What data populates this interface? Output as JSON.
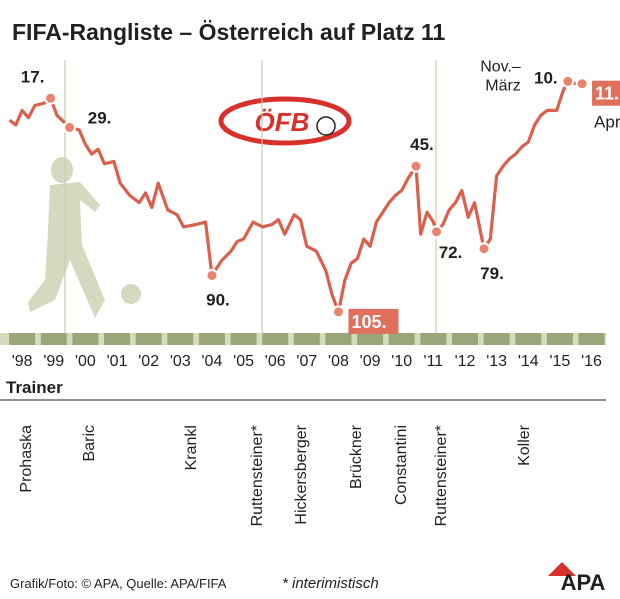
{
  "chart_data": {
    "type": "line",
    "title": "FIFA-Rangliste – Österreich auf Platz 11",
    "color": "#d9614c",
    "xlim": [
      1997.3,
      2016.9
    ],
    "ylim": [
      110,
      0
    ],
    "xticks": [
      {
        "value": 1998,
        "label": "'98"
      },
      {
        "value": 1999,
        "label": "'99"
      },
      {
        "value": 2000,
        "label": "'00"
      },
      {
        "value": 2001,
        "label": "'01"
      },
      {
        "value": 2002,
        "label": "'02"
      },
      {
        "value": 2003,
        "label": "'03"
      },
      {
        "value": 2004,
        "label": "'04"
      },
      {
        "value": 2005,
        "label": "'05"
      },
      {
        "value": 2006,
        "label": "'06"
      },
      {
        "value": 2007,
        "label": "'07"
      },
      {
        "value": 2008,
        "label": "'08"
      },
      {
        "value": 2009,
        "label": "'09"
      },
      {
        "value": 2010,
        "label": "'10"
      },
      {
        "value": 2011,
        "label": "'11"
      },
      {
        "value": 2012,
        "label": "'12"
      },
      {
        "value": 2013,
        "label": "'13"
      },
      {
        "value": 2014,
        "label": "'14"
      },
      {
        "value": 2015,
        "label": "'15"
      },
      {
        "value": 2016,
        "label": "'16"
      }
    ],
    "x": [
      1997.6,
      1997.8,
      1998.0,
      1998.2,
      1998.4,
      1998.7,
      1998.9,
      1999.1,
      1999.5,
      1999.8,
      2000.0,
      2000.2,
      2000.4,
      2000.6,
      2000.9,
      2001.1,
      2001.4,
      2001.7,
      2001.9,
      2002.1,
      2002.3,
      2002.6,
      2002.9,
      2003.1,
      2003.5,
      2003.8,
      2004.0,
      2004.3,
      2004.6,
      2004.8,
      2005.0,
      2005.3,
      2005.6,
      2005.9,
      2006.1,
      2006.3,
      2006.6,
      2006.8,
      2007.0,
      2007.3,
      2007.6,
      2007.8,
      2008.0,
      2008.2,
      2008.4,
      2008.6,
      2008.8,
      2009.0,
      2009.2,
      2009.4,
      2009.6,
      2009.8,
      2010.0,
      2010.2,
      2010.35,
      2010.45,
      2010.6,
      2010.8,
      2011.0,
      2011.1,
      2011.3,
      2011.5,
      2011.7,
      2011.9,
      2012.1,
      2012.3,
      2012.6,
      2012.8,
      2013.0,
      2013.2,
      2013.4,
      2013.6,
      2013.8,
      2014.0,
      2014.2,
      2014.4,
      2014.6,
      2014.9,
      2015.1,
      2015.25,
      2015.5,
      2015.7
    ],
    "values": [
      26,
      28,
      22,
      25,
      20,
      19,
      17,
      24,
      29,
      30,
      36,
      40,
      38,
      44,
      43,
      52,
      57,
      60,
      56,
      62,
      52,
      63,
      65,
      70,
      69,
      68,
      90,
      84,
      80,
      76,
      75,
      68,
      70,
      69,
      67,
      73,
      65,
      67,
      78,
      80,
      88,
      98,
      105,
      92,
      85,
      83,
      75,
      78,
      68,
      64,
      60,
      57,
      55,
      50,
      47,
      45,
      73,
      64,
      68,
      72,
      69,
      63,
      60,
      55,
      66,
      60,
      79,
      75,
      49,
      45,
      42,
      40,
      37,
      35,
      28,
      24,
      22,
      22,
      14,
      10,
      11,
      11
    ],
    "annotations": [
      {
        "text": "17.",
        "x": 1998.9,
        "value": 17
      },
      {
        "text": "29.",
        "x": 1999.5,
        "value": 29
      },
      {
        "text": "90.",
        "x": 2004.0,
        "value": 90
      },
      {
        "text": "105.",
        "x": 2008.0,
        "value": 105,
        "boxed": true
      },
      {
        "text": "45.",
        "x": 2010.45,
        "value": 45
      },
      {
        "text": "72.",
        "x": 2011.1,
        "value": 72
      },
      {
        "text": "79.",
        "x": 2012.6,
        "value": 79
      },
      {
        "text": "10.",
        "x": 2015.25,
        "value": 10,
        "note": "Nov.–März"
      },
      {
        "text": "11.",
        "x": 2015.7,
        "value": 11,
        "boxed": true,
        "note": "April"
      }
    ],
    "trainer_label": "Trainer",
    "trainers": [
      "Prohaska",
      "Baric",
      "Krankl",
      "Ruttensteiner*",
      "Hickersberger",
      "Brückner",
      "Constantini",
      "Ruttensteiner*",
      "Koller"
    ],
    "logo_text": "ÖFB",
    "source": "Grafik/Foto: © APA, Quelle: APA/FIFA",
    "footnote": "* interimistisch",
    "brand": "APA"
  }
}
